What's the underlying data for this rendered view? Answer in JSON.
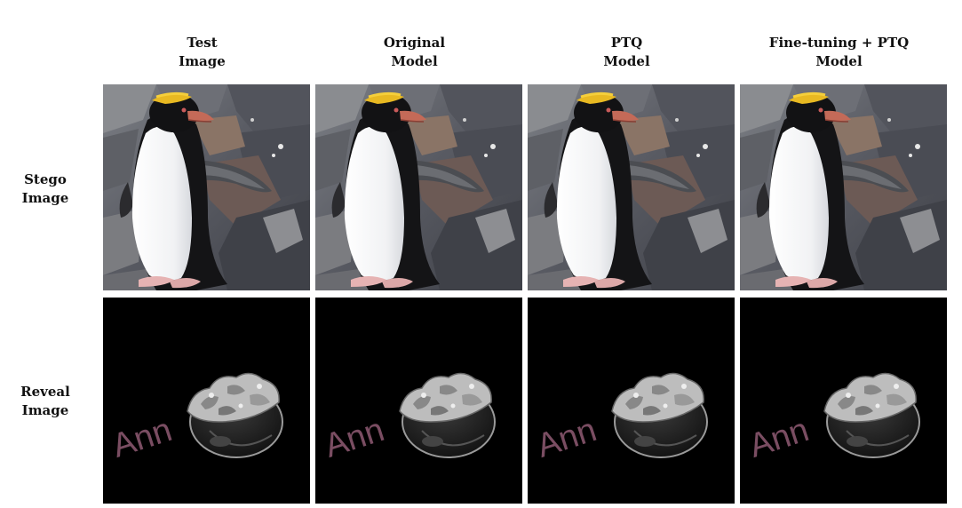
{
  "columns": [
    {
      "line1": "Test",
      "line2": "Image"
    },
    {
      "line1": "Original",
      "line2": "Model"
    },
    {
      "line1": "PTQ",
      "line2": "Model"
    },
    {
      "line1": "Fine-tuning + PTQ",
      "line2": "Model"
    }
  ],
  "rows": [
    {
      "line1": "Stego",
      "line2": "Image"
    },
    {
      "line1": "Reveal",
      "line2": "Image"
    }
  ],
  "reveal_text": "Ann",
  "images": {
    "stego": "penguin-on-rocks-photo",
    "reveal": "bowl-and-ann-text-on-black"
  },
  "colors": {
    "reveal_text": "#7a4d62",
    "reveal_background": "#000000"
  }
}
